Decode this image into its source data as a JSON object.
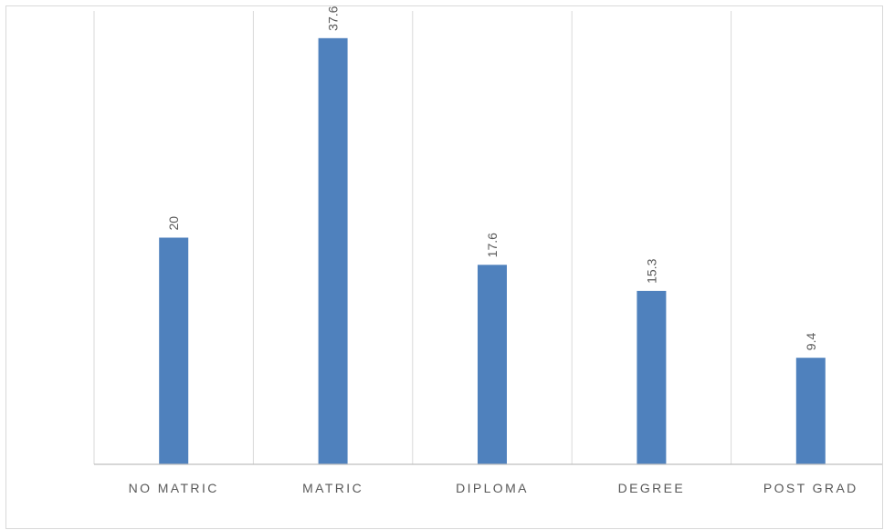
{
  "chart_data": {
    "type": "bar",
    "categories": [
      "NO  MATRIC",
      "MATRIC",
      "DIPLOMA",
      "DEGREE",
      "POST GRAD"
    ],
    "values": [
      20,
      37.6,
      17.6,
      15.3,
      9.4
    ],
    "data_labels": [
      "20",
      "37.6",
      "17.6",
      "15.3",
      "9.4"
    ],
    "title": "",
    "xlabel": "",
    "ylabel": "",
    "ylim": [
      0,
      40
    ],
    "grid": "vertical category separators",
    "legend": "none",
    "data_label_orientation": "rotated",
    "colors": {
      "bar": "#4f81bd",
      "grid": "#d9d9d9",
      "axis": "#bfbfbf",
      "text": "#595959"
    }
  }
}
